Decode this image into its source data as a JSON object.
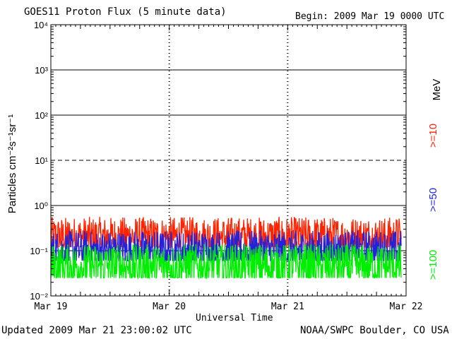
{
  "chart_data": {
    "type": "line",
    "title": "GOES11 Proton Flux (5 minute data)",
    "begin_label": "Begin: 2009 Mar 19 0000 UTC",
    "xlabel": "Universal Time",
    "ylabel": "Particles cm⁻²s⁻¹sr⁻¹",
    "unit_label": "MeV",
    "y_scale": "log",
    "ylim": [
      0.01,
      10000
    ],
    "y_ticks": [
      "10⁴",
      "10³",
      "10²",
      "10¹",
      "10⁰",
      "10⁻¹",
      "10⁻²"
    ],
    "x_ticks": [
      "Mar 19",
      "Mar 20",
      "Mar 21",
      "Mar 22"
    ],
    "xlim_days": [
      0,
      3
    ],
    "x_end_days": 2.96,
    "grid": true,
    "series": [
      {
        "name": ">=10",
        "color": "#ff2200",
        "base": 0.2,
        "spread": 0.45,
        "min": 0.12
      },
      {
        "name": ">=50",
        "color": "#2222dd",
        "base": 0.1,
        "spread": 0.45,
        "min": 0.06
      },
      {
        "name": ">=100",
        "color": "#00ee00",
        "base": 0.045,
        "spread": 0.5,
        "min": 0.025
      }
    ]
  },
  "footer": {
    "updated": "Updated 2009 Mar 21 23:00:02 UTC",
    "source": "NOAA/SWPC Boulder, CO USA"
  }
}
